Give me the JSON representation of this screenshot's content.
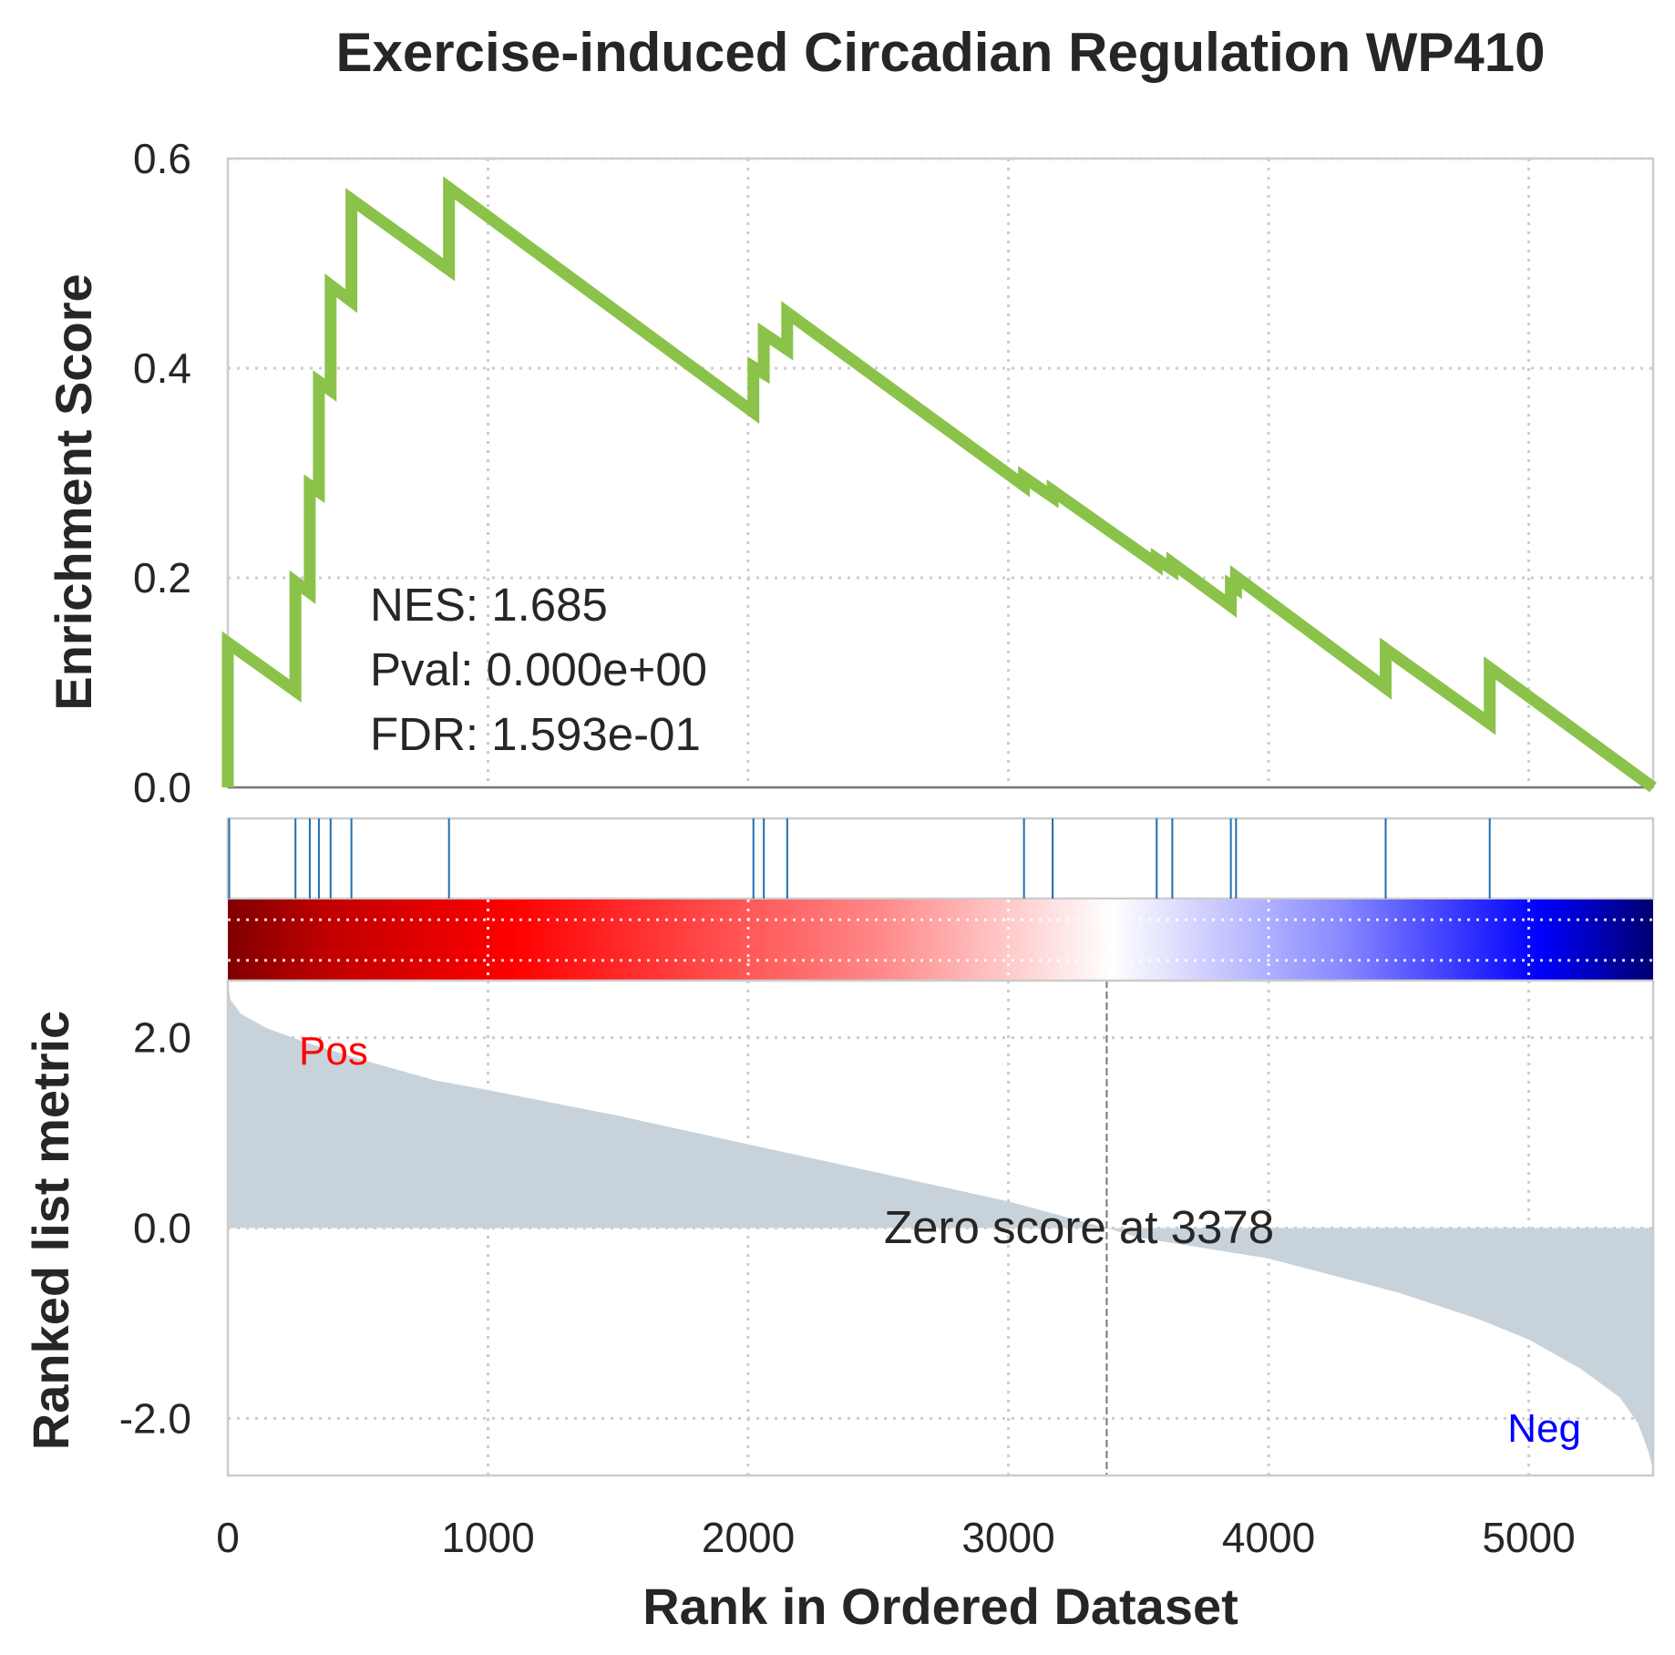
{
  "chart_data": {
    "type": "line",
    "title": "Exercise-induced Circadian Regulation WP410",
    "xlabel": "Rank in Ordered Dataset",
    "xlim": [
      0,
      5478
    ],
    "x_ticks": [
      "0",
      "1000",
      "2000",
      "3000",
      "4000",
      "5000"
    ],
    "x_tick_values": [
      0,
      1000,
      2000,
      3000,
      4000,
      5000
    ],
    "grid": true,
    "enrichment_panel": {
      "ylabel": "Enrichment Score",
      "ylim": [
        0,
        0.6
      ],
      "y_ticks": [
        "0.0",
        "0.2",
        "0.4",
        "0.6"
      ],
      "y_tick_values": [
        0,
        0.2,
        0.4,
        0.6
      ],
      "line_color": "#8bc34a",
      "hits": [
        {
          "rank": 0,
          "es_before": 0.0,
          "es_after": 0.138
        },
        {
          "rank": 260,
          "es_before": 0.092,
          "es_after": 0.196
        },
        {
          "rank": 315,
          "es_before": 0.186,
          "es_after": 0.288
        },
        {
          "rank": 350,
          "es_before": 0.282,
          "es_after": 0.387
        },
        {
          "rank": 395,
          "es_before": 0.379,
          "es_after": 0.479
        },
        {
          "rank": 475,
          "es_before": 0.464,
          "es_after": 0.561
        },
        {
          "rank": 850,
          "es_before": 0.494,
          "es_after": 0.572
        },
        {
          "rank": 2020,
          "es_before": 0.358,
          "es_after": 0.401
        },
        {
          "rank": 2060,
          "es_before": 0.395,
          "es_after": 0.433
        },
        {
          "rank": 2150,
          "es_before": 0.418,
          "es_after": 0.453
        },
        {
          "rank": 3060,
          "es_before": 0.288,
          "es_after": 0.296
        },
        {
          "rank": 3170,
          "es_before": 0.277,
          "es_after": 0.283
        },
        {
          "rank": 3570,
          "es_before": 0.213,
          "es_after": 0.218
        },
        {
          "rank": 3630,
          "es_before": 0.208,
          "es_after": 0.214
        },
        {
          "rank": 3855,
          "es_before": 0.173,
          "es_after": 0.193
        },
        {
          "rank": 3875,
          "es_before": 0.19,
          "es_after": 0.201
        },
        {
          "rank": 4450,
          "es_before": 0.095,
          "es_after": 0.132
        },
        {
          "rank": 4850,
          "es_before": 0.061,
          "es_after": 0.114
        }
      ],
      "end": {
        "rank": 5478,
        "es": 0.0
      },
      "stats": {
        "nes": "NES: 1.685",
        "pval": "Pval: 0.000e+00",
        "fdr": "FDR: 1.593e-01"
      }
    },
    "hit_ticks": {
      "color": "#1f6fb2",
      "ranks": [
        0,
        260,
        315,
        350,
        395,
        475,
        850,
        2020,
        2060,
        2150,
        3060,
        3170,
        3570,
        3630,
        3855,
        3875,
        4450,
        4850
      ]
    },
    "colorbar": {
      "stops": [
        {
          "offset": 0.0,
          "color": "#800000"
        },
        {
          "offset": 0.07,
          "color": "#c00000"
        },
        {
          "offset": 0.2,
          "color": "#ff0000"
        },
        {
          "offset": 0.46,
          "color": "#ff8a8a"
        },
        {
          "offset": 0.62,
          "color": "#ffffff"
        },
        {
          "offset": 0.78,
          "color": "#8a8aff"
        },
        {
          "offset": 0.92,
          "color": "#0000ff"
        },
        {
          "offset": 1.0,
          "color": "#000070"
        }
      ]
    },
    "metric_panel": {
      "ylabel": "Ranked list metric",
      "ylim": [
        -2.6,
        2.6
      ],
      "y_ticks": [
        "2.0",
        "0.0",
        "-2.0"
      ],
      "y_tick_values": [
        2,
        0,
        -2
      ],
      "fill_color": "#c8d2da",
      "curve": [
        [
          0,
          2.6
        ],
        [
          10,
          2.4
        ],
        [
          50,
          2.25
        ],
        [
          150,
          2.1
        ],
        [
          300,
          1.95
        ],
        [
          500,
          1.78
        ],
        [
          800,
          1.55
        ],
        [
          1000,
          1.45
        ],
        [
          1500,
          1.18
        ],
        [
          2000,
          0.88
        ],
        [
          2500,
          0.58
        ],
        [
          3000,
          0.28
        ],
        [
          3378,
          0.0
        ],
        [
          3500,
          -0.1
        ],
        [
          4000,
          -0.32
        ],
        [
          4500,
          -0.68
        ],
        [
          4800,
          -0.95
        ],
        [
          5000,
          -1.17
        ],
        [
          5200,
          -1.48
        ],
        [
          5350,
          -1.78
        ],
        [
          5420,
          -2.05
        ],
        [
          5460,
          -2.35
        ],
        [
          5478,
          -2.55
        ]
      ],
      "zero_cross": 3378,
      "zero_label": "Zero score at 3378",
      "pos_label": "Pos",
      "pos_color": "#ff0000",
      "neg_label": "Neg",
      "neg_color": "#0000ff"
    }
  }
}
